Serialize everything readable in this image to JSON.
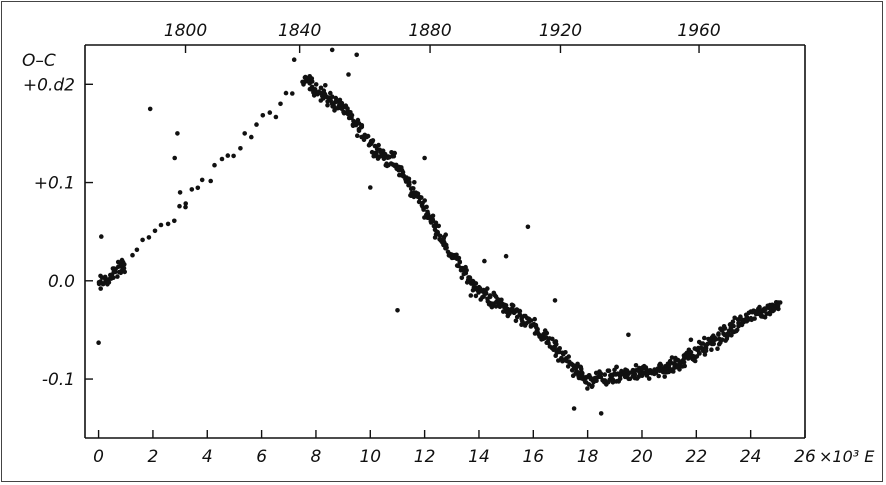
{
  "chart_data": {
    "type": "scatter",
    "ylabel": "O–C",
    "y_unit_first_tick": "+0.ᵈ 2",
    "xlabel_unit": "×10³ E",
    "xlim": [
      -0.5,
      26.0
    ],
    "ylim": [
      -0.16,
      0.24
    ],
    "grid": false,
    "bottom_axis": {
      "ticks": [
        0,
        2,
        4,
        6,
        8,
        10,
        12,
        14,
        16,
        18,
        20,
        22,
        24,
        26
      ],
      "tick_labels": [
        "0",
        "2",
        "4",
        "6",
        "8",
        "10",
        "12",
        "14",
        "16",
        "18",
        "20",
        "22",
        "24",
        "26"
      ]
    },
    "top_axis": {
      "tick_labels": [
        "1800",
        "1840",
        "1880",
        "1920",
        "1960"
      ],
      "tick_positions_E": [
        3.2,
        7.4,
        12.2,
        17.0,
        22.1
      ]
    },
    "left_axis": {
      "ticks": [
        0.2,
        0.1,
        0.0,
        -0.1
      ],
      "tick_labels": [
        "+0.d2",
        "+0.1",
        "0.0",
        "-0.1"
      ]
    },
    "trend": [
      [
        0.0,
        -0.005
      ],
      [
        0.5,
        0.005
      ],
      [
        1.0,
        0.018
      ],
      [
        2.0,
        0.045
      ],
      [
        3.0,
        0.075
      ],
      [
        4.0,
        0.105
      ],
      [
        5.0,
        0.13
      ],
      [
        6.0,
        0.16
      ],
      [
        7.0,
        0.19
      ],
      [
        7.6,
        0.205
      ],
      [
        8.0,
        0.195
      ],
      [
        9.0,
        0.175
      ],
      [
        10.0,
        0.14
      ],
      [
        11.0,
        0.115
      ],
      [
        12.0,
        0.075
      ],
      [
        13.0,
        0.025
      ],
      [
        14.0,
        -0.01
      ],
      [
        15.0,
        -0.028
      ],
      [
        16.0,
        -0.045
      ],
      [
        17.0,
        -0.075
      ],
      [
        18.0,
        -0.103
      ],
      [
        19.0,
        -0.097
      ],
      [
        20.0,
        -0.093
      ],
      [
        21.0,
        -0.088
      ],
      [
        22.0,
        -0.072
      ],
      [
        23.0,
        -0.055
      ],
      [
        24.0,
        -0.035
      ],
      [
        25.0,
        -0.025
      ]
    ],
    "outliers": [
      [
        0.0,
        -0.063
      ],
      [
        0.1,
        0.045
      ],
      [
        1.9,
        0.175
      ],
      [
        2.9,
        0.15
      ],
      [
        2.8,
        0.125
      ],
      [
        3.0,
        0.09
      ],
      [
        3.2,
        0.075
      ],
      [
        8.6,
        0.235
      ],
      [
        9.5,
        0.23
      ],
      [
        9.2,
        0.21
      ],
      [
        10.0,
        0.095
      ],
      [
        11.0,
        -0.03
      ],
      [
        13.7,
        -0.015
      ],
      [
        15.0,
        0.025
      ],
      [
        15.8,
        0.055
      ],
      [
        12.0,
        0.125
      ],
      [
        16.8,
        -0.02
      ],
      [
        19.5,
        -0.055
      ],
      [
        21.8,
        -0.06
      ],
      [
        17.5,
        -0.13
      ],
      [
        18.5,
        -0.135
      ],
      [
        7.2,
        0.225
      ],
      [
        10.9,
        0.13
      ],
      [
        14.2,
        0.02
      ]
    ],
    "scatter_spread": 0.012,
    "marker_color": "#111111"
  }
}
